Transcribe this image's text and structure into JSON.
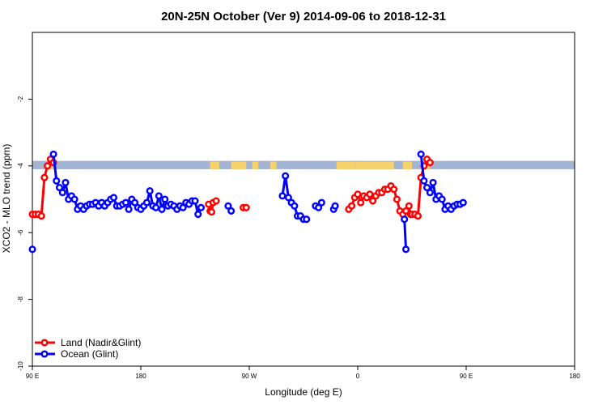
{
  "chart_data": {
    "type": "line",
    "title": "20N-25N October (Ver 9)   2014-09-06 to 2018-12-31",
    "xlabel": "Longitude (deg E)",
    "ylabel": "XCO2 - MLO trend (ppm)",
    "xlim": [
      90,
      450
    ],
    "ylim": [
      -10,
      0
    ],
    "x_ticks": [
      {
        "value": 90,
        "label": "90 E"
      },
      {
        "value": 162,
        "label": "180"
      },
      {
        "value": 234,
        "label": "90 W"
      },
      {
        "value": 306,
        "label": "0"
      },
      {
        "value": 378,
        "label": "90 E"
      },
      {
        "value": 450,
        "label": "180"
      }
    ],
    "y_ticks": [
      {
        "value": -2,
        "label": "-2"
      },
      {
        "value": -4,
        "label": "-4"
      },
      {
        "value": -6,
        "label": "-6"
      },
      {
        "value": -8,
        "label": "-8"
      },
      {
        "value": -10,
        "label": "-10"
      }
    ],
    "legend_position": "bottom-left",
    "map_strip": {
      "y_range": [
        -3.85,
        -4.1
      ],
      "ocean_color": "#a4b4d4",
      "land_color": "#f6d16c"
    },
    "series": [
      {
        "name": "Land (Nadir&Glint)",
        "color": "#ff0000",
        "points": [
          [
            90,
            -5.45
          ],
          [
            92,
            -5.45
          ],
          [
            94,
            -5.45
          ],
          [
            96,
            -5.5
          ],
          [
            98,
            -4.35
          ],
          [
            100,
            -4.0
          ],
          [
            102,
            -3.8
          ],
          [
            104,
            -3.9
          ],
          [
            207,
            -5.15
          ],
          [
            208,
            -5.35
          ],
          [
            209,
            -5.38
          ],
          [
            210,
            -5.1
          ],
          [
            212,
            -5.05
          ],
          [
            230,
            -5.25
          ],
          [
            232,
            -5.25
          ],
          [
            300,
            -5.3
          ],
          [
            302,
            -5.2
          ],
          [
            304,
            -4.95
          ],
          [
            306,
            -4.85
          ],
          [
            308,
            -5.1
          ],
          [
            310,
            -4.9
          ],
          [
            312,
            -4.95
          ],
          [
            314,
            -4.85
          ],
          [
            316,
            -5.05
          ],
          [
            318,
            -4.9
          ],
          [
            320,
            -4.8
          ],
          [
            322,
            -4.8
          ],
          [
            324,
            -4.7
          ],
          [
            326,
            -4.7
          ],
          [
            328,
            -4.6
          ],
          [
            330,
            -4.7
          ],
          [
            332,
            -5.0
          ],
          [
            334,
            -5.35
          ],
          [
            336,
            -5.45
          ],
          [
            338,
            -5.35
          ],
          [
            340,
            -5.2
          ],
          [
            341,
            -5.45
          ],
          [
            342,
            -5.45
          ],
          [
            344,
            -5.45
          ],
          [
            346,
            -5.5
          ],
          [
            348,
            -4.35
          ],
          [
            350,
            -4.0
          ],
          [
            352,
            -3.8
          ],
          [
            354,
            -3.9
          ]
        ]
      },
      {
        "name": "Ocean (Glint)",
        "color": "#0000ff",
        "points": [
          [
            90,
            -6.5
          ],
          [
            104,
            -3.65
          ],
          [
            106,
            -4.45
          ],
          [
            108,
            -4.65
          ],
          [
            110,
            -4.8
          ],
          [
            112,
            -4.5
          ],
          [
            114,
            -5.0
          ],
          [
            116,
            -4.9
          ],
          [
            118,
            -5.0
          ],
          [
            120,
            -5.3
          ],
          [
            122,
            -5.2
          ],
          [
            124,
            -5.3
          ],
          [
            126,
            -5.2
          ],
          [
            128,
            -5.15
          ],
          [
            130,
            -5.15
          ],
          [
            132,
            -5.1
          ],
          [
            134,
            -5.2
          ],
          [
            136,
            -5.1
          ],
          [
            138,
            -5.2
          ],
          [
            140,
            -5.1
          ],
          [
            142,
            -5.0
          ],
          [
            144,
            -4.95
          ],
          [
            146,
            -5.2
          ],
          [
            148,
            -5.2
          ],
          [
            150,
            -5.15
          ],
          [
            152,
            -5.1
          ],
          [
            154,
            -5.3
          ],
          [
            156,
            -5.0
          ],
          [
            158,
            -5.1
          ],
          [
            160,
            -5.25
          ],
          [
            162,
            -5.3
          ],
          [
            164,
            -5.2
          ],
          [
            166,
            -5.1
          ],
          [
            168,
            -4.75
          ],
          [
            170,
            -5.2
          ],
          [
            172,
            -5.25
          ],
          [
            174,
            -4.9
          ],
          [
            176,
            -5.3
          ],
          [
            178,
            -5.0
          ],
          [
            180,
            -5.2
          ],
          [
            182,
            -5.15
          ],
          [
            184,
            -5.2
          ],
          [
            186,
            -5.3
          ],
          [
            188,
            -5.2
          ],
          [
            190,
            -5.25
          ],
          [
            192,
            -5.1
          ],
          [
            194,
            -5.15
          ],
          [
            196,
            -5.05
          ],
          [
            198,
            -5.05
          ],
          [
            200,
            -5.45
          ],
          [
            202,
            -5.25
          ],
          [
            220,
            -5.2
          ],
          [
            222,
            -5.35
          ],
          [
            256,
            -4.9
          ],
          [
            258,
            -4.3
          ],
          [
            260,
            -4.95
          ],
          [
            262,
            -5.1
          ],
          [
            264,
            -5.2
          ],
          [
            266,
            -5.5
          ],
          [
            268,
            -5.5
          ],
          [
            270,
            -5.6
          ],
          [
            272,
            -5.6
          ],
          [
            278,
            -5.2
          ],
          [
            280,
            -5.25
          ],
          [
            282,
            -5.1
          ],
          [
            290,
            -5.3
          ],
          [
            291,
            -5.2
          ],
          [
            337,
            -5.6
          ],
          [
            338,
            -6.5
          ],
          [
            348,
            -3.65
          ],
          [
            350,
            -4.45
          ],
          [
            352,
            -4.65
          ],
          [
            354,
            -4.8
          ],
          [
            356,
            -4.5
          ],
          [
            358,
            -5.0
          ],
          [
            360,
            -4.9
          ],
          [
            362,
            -5.0
          ],
          [
            364,
            -5.3
          ],
          [
            366,
            -5.2
          ],
          [
            368,
            -5.3
          ],
          [
            370,
            -5.2
          ],
          [
            372,
            -5.15
          ],
          [
            374,
            -5.15
          ],
          [
            376,
            -5.1
          ]
        ]
      }
    ]
  }
}
